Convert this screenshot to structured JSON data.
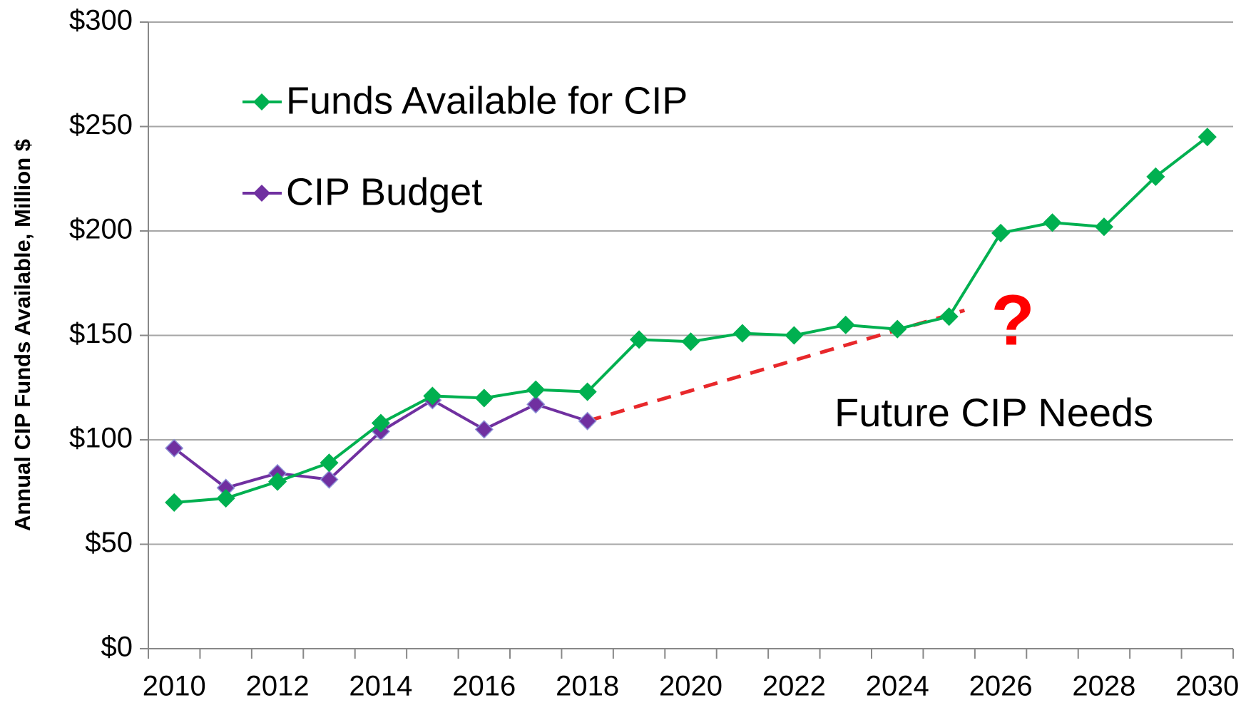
{
  "chart_data": {
    "type": "line",
    "y_label": "Annual CIP Funds Available, Million $",
    "categories": [
      "2010",
      null,
      "2012",
      null,
      "2014",
      null,
      "2016",
      null,
      "2018",
      null,
      "2020",
      null,
      "2022",
      null,
      "2024",
      null,
      "2026",
      null,
      "2028",
      null,
      "2030"
    ],
    "series": [
      {
        "name": "Funds Available for CIP",
        "color": "#00b050",
        "values": [
          70,
          72,
          80,
          89,
          108,
          121,
          120,
          124,
          123,
          148,
          147,
          151,
          150,
          155,
          153,
          159,
          199,
          204,
          202,
          226,
          245
        ]
      },
      {
        "name": "CIP Budget",
        "color": "#7030a0",
        "values": [
          96,
          77,
          84,
          81,
          104,
          119,
          105,
          117,
          109,
          null,
          null,
          null,
          null,
          null,
          null,
          null,
          null,
          null,
          null,
          null,
          null
        ]
      }
    ],
    "trend_line": {
      "color": "#e8282b",
      "x": [
        2018,
        2025.3
      ],
      "values": [
        109,
        162
      ]
    },
    "annotations": [
      {
        "text": "?",
        "color": "#ff0000"
      },
      {
        "text": "Future CIP Needs"
      }
    ],
    "ylim": [
      0,
      300
    ],
    "yticks": [
      {
        "value": 0,
        "label": "$0"
      },
      {
        "value": 50,
        "label": "$50"
      },
      {
        "value": 100,
        "label": "$100"
      },
      {
        "value": 150,
        "label": "$150"
      },
      {
        "value": 200,
        "label": "$200"
      },
      {
        "value": 250,
        "label": "$250"
      },
      {
        "value": 300,
        "label": "$300"
      }
    ],
    "grid": true,
    "legend": "upper left"
  }
}
